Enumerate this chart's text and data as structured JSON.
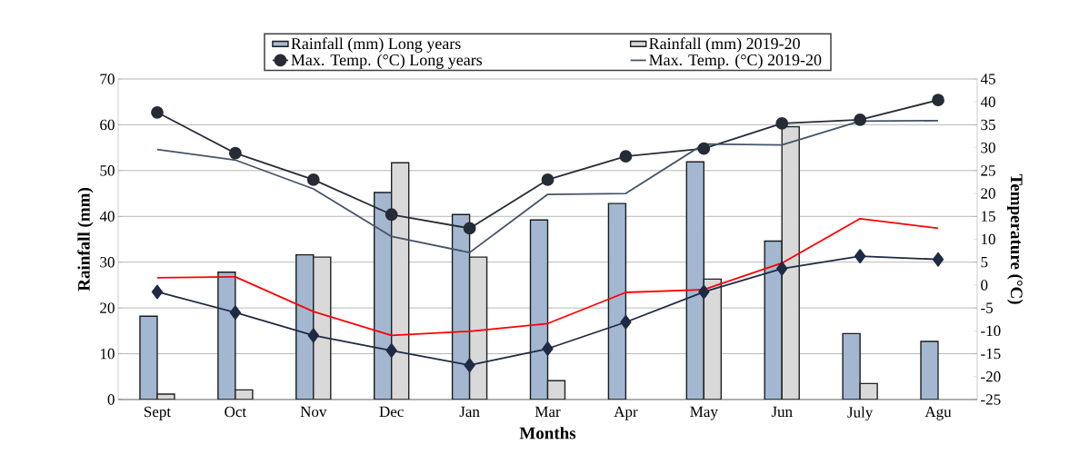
{
  "chart_data": {
    "type": "bar",
    "xlabel": "Months",
    "ylabel": "Rainfall (mm)",
    "y2label": "Temperature (°C)",
    "categories": [
      "Sept",
      "Oct",
      "Nov",
      "Dec",
      "Jan",
      "Mar",
      "Apr",
      "May",
      "Jun",
      "July",
      "Agu"
    ],
    "ylim": [
      0,
      70
    ],
    "yticks": [
      0,
      10,
      20,
      30,
      40,
      50,
      60,
      70
    ],
    "y2lim": [
      -25,
      45
    ],
    "y2ticks": [
      -25,
      -20,
      -15,
      -10,
      -5,
      0,
      5,
      10,
      15,
      20,
      25,
      30,
      35,
      40,
      45
    ],
    "grid": "y",
    "legend": "top",
    "series": [
      {
        "name": "Rainfall (mm) Long years",
        "color": "#a3b8d0",
        "values": [
          18.2,
          27.8,
          31.6,
          45.2,
          40.4,
          39.2,
          42.8,
          51.9,
          34.6,
          14.4,
          12.7
        ]
      },
      {
        "name": "Rainfall (mm) 2019-20",
        "color": "#d9d9d9",
        "values": [
          1.2,
          2.1,
          31.1,
          51.7,
          31.1,
          4.1,
          null,
          26.3,
          59.6,
          3.5,
          null
        ]
      },
      {
        "name": "Max. Temp. (°C) Long years",
        "type": "line",
        "axis": "y2",
        "color": "#262c36",
        "marker": "circle",
        "values": [
          37.7,
          28.8,
          23,
          15.4,
          12.4,
          23,
          28.1,
          29.8,
          35.3,
          36.1,
          40.4
        ]
      },
      {
        "name": "Max. Temp. (°C) 2019-20",
        "type": "line",
        "axis": "y2",
        "color": "#44546a",
        "values": [
          29.6,
          27.3,
          21,
          10.6,
          7.1,
          19.8,
          20,
          30.8,
          30.6,
          35.8,
          35.9
        ]
      },
      {
        "type": "line",
        "axis": "y2",
        "color": "#1f2a44",
        "marker": "diamond",
        "values": [
          -1.5,
          -6,
          -11,
          -14.3,
          -17.5,
          -13.9,
          -8.1,
          -1.5,
          3.6,
          6.3,
          5.6
        ]
      },
      {
        "type": "line",
        "axis": "y2",
        "color": "#ff0000",
        "values": [
          1.6,
          1.8,
          -5.8,
          -11,
          -10.1,
          -8.4,
          -1.6,
          -1,
          4.8,
          14.5,
          12.4
        ]
      }
    ]
  }
}
